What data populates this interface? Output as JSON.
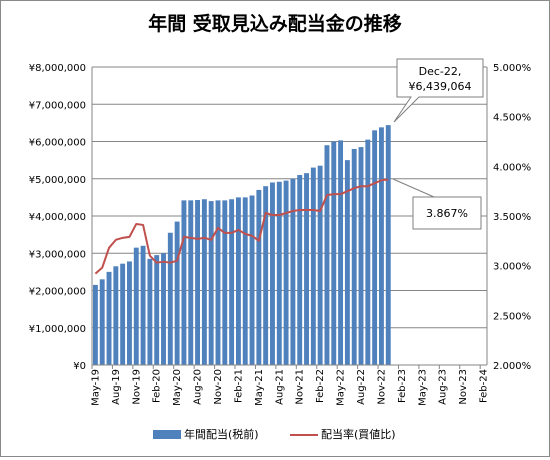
{
  "chart_data": {
    "type": "bar+line",
    "title": "年間 受取見込み配当金の推移",
    "x_tick_labels": [
      "May-19",
      "Aug-19",
      "Nov-19",
      "Feb-20",
      "May-20",
      "Aug-20",
      "Nov-20",
      "Feb-21",
      "May-21",
      "Aug-21",
      "Nov-21",
      "Feb-22",
      "May-22",
      "Aug-22",
      "Nov-22",
      "Feb-23",
      "May-23",
      "Aug-23",
      "Nov-23",
      "Feb-24"
    ],
    "y_left_ticks": [
      "¥0",
      "¥1,000,000",
      "¥2,000,000",
      "¥3,000,000",
      "¥4,000,000",
      "¥5,000,000",
      "¥6,000,000",
      "¥7,000,000",
      "¥8,000,000"
    ],
    "y_right_ticks": [
      "2.000%",
      "2.500%",
      "3.000%",
      "3.500%",
      "4.000%",
      "4.500%",
      "5.000%"
    ],
    "y_left_range": [
      0,
      8000000
    ],
    "y_right_range": [
      0.02,
      0.05
    ],
    "series": [
      {
        "name": "年間配当(税前)",
        "kind": "bar",
        "color": "#4f81bd",
        "values": [
          2150000,
          2300000,
          2500000,
          2650000,
          2720000,
          2780000,
          3150000,
          3200000,
          2850000,
          2950000,
          3000000,
          3550000,
          3850000,
          4420000,
          4420000,
          4430000,
          4450000,
          4400000,
          4420000,
          4420000,
          4450000,
          4500000,
          4500000,
          4550000,
          4700000,
          4800000,
          4900000,
          4920000,
          4950000,
          5000000,
          5100000,
          5150000,
          5300000,
          5350000,
          5900000,
          6000000,
          6030000,
          5500000,
          5800000,
          5850000,
          6050000,
          6300000,
          6380000,
          6439064
        ]
      },
      {
        "name": "配当率(買値比)",
        "kind": "line",
        "color": "#c0504d",
        "values": [
          0.0292,
          0.0298,
          0.0318,
          0.0326,
          0.0328,
          0.0329,
          0.0342,
          0.0341,
          0.031,
          0.0303,
          0.0304,
          0.0303,
          0.0305,
          0.0329,
          0.0328,
          0.0327,
          0.0328,
          0.0326,
          0.0338,
          0.0333,
          0.0333,
          0.0336,
          0.0332,
          0.033,
          0.0325,
          0.0353,
          0.0351,
          0.0351,
          0.0353,
          0.0355,
          0.0356,
          0.0356,
          0.0356,
          0.0355,
          0.0371,
          0.0372,
          0.0372,
          0.0375,
          0.0378,
          0.038,
          0.038,
          0.0383,
          0.0386,
          0.03867
        ]
      }
    ],
    "callouts": [
      {
        "line1": "Dec-22,",
        "line2": "¥6,439,064"
      },
      {
        "line1": "3.867%"
      }
    ],
    "legend_position": "bottom"
  }
}
